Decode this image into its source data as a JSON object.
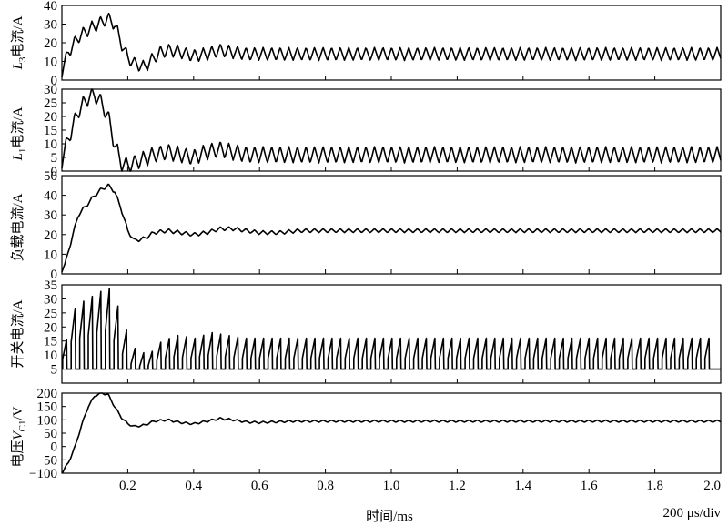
{
  "chart_data": [
    {
      "type": "line",
      "ylabel": "L3电流/A",
      "ylim": [
        0,
        40
      ],
      "yticks": [
        "0",
        "10",
        "20",
        "30",
        "40"
      ],
      "ytick_values": [
        0,
        10,
        20,
        30,
        40
      ],
      "x": [
        0,
        0.02,
        0.05,
        0.08,
        0.1,
        0.12,
        0.14,
        0.16,
        0.18,
        0.2,
        0.22,
        0.25,
        0.28,
        0.3,
        0.33,
        0.36,
        0.4,
        0.44,
        0.48,
        0.52,
        0.56,
        0.6,
        0.7,
        0.8,
        1.0,
        1.2,
        1.4,
        1.6,
        1.8,
        2.0
      ],
      "y": [
        5,
        15,
        23,
        27,
        29,
        31,
        33,
        30,
        20,
        12,
        9,
        7,
        12,
        15,
        16,
        15,
        13,
        14,
        16,
        15,
        14,
        14,
        14,
        14,
        14,
        14,
        14,
        14,
        14,
        14
      ],
      "ripple_amplitude": 3.5
    },
    {
      "type": "line",
      "ylabel": "L1电流/A",
      "ylim": [
        0,
        30
      ],
      "yticks": [
        "0",
        "5",
        "10",
        "15",
        "20",
        "25",
        "30"
      ],
      "ytick_values": [
        0,
        5,
        10,
        15,
        20,
        25,
        30
      ],
      "x": [
        0,
        0.02,
        0.05,
        0.08,
        0.1,
        0.12,
        0.14,
        0.16,
        0.18,
        0.2,
        0.24,
        0.28,
        0.32,
        0.36,
        0.4,
        0.44,
        0.48,
        0.52,
        0.56,
        0.6,
        0.7,
        0.8,
        1.0,
        1.2,
        1.4,
        1.6,
        1.8,
        2.0
      ],
      "y": [
        4,
        12,
        22,
        27,
        28,
        25,
        20,
        10,
        3,
        2,
        4,
        6,
        7,
        6,
        5,
        7,
        8,
        7,
        6,
        6,
        6,
        6,
        6,
        6,
        6,
        6,
        6,
        6
      ],
      "ripple_amplitude": 3
    },
    {
      "type": "line",
      "ylabel": "负载电流/A",
      "ylim": [
        0,
        50
      ],
      "yticks": [
        "0",
        "10",
        "20",
        "30",
        "40",
        "50"
      ],
      "ytick_values": [
        0,
        10,
        20,
        30,
        40,
        50
      ],
      "x": [
        0,
        0.01,
        0.03,
        0.05,
        0.08,
        0.1,
        0.12,
        0.14,
        0.16,
        0.18,
        0.2,
        0.22,
        0.25,
        0.28,
        0.32,
        0.36,
        0.4,
        0.44,
        0.48,
        0.52,
        0.56,
        0.6,
        0.66,
        0.72,
        0.8,
        0.9,
        1.0,
        1.2,
        1.4,
        1.6,
        1.8,
        2.0
      ],
      "y": [
        2,
        5,
        18,
        30,
        36,
        40,
        43,
        45,
        42,
        33,
        22,
        17,
        18,
        21,
        22,
        21,
        20,
        21,
        23,
        23,
        22,
        21,
        21,
        22,
        22,
        22,
        22,
        22,
        22,
        22,
        22,
        22
      ],
      "ripple_amplitude": 1
    },
    {
      "type": "line",
      "ylabel": "开关电流/A",
      "ylim": [
        0,
        35
      ],
      "yticks": [
        "5",
        "10",
        "15",
        "20",
        "25",
        "30",
        "35"
      ],
      "ytick_values": [
        5,
        10,
        15,
        20,
        25,
        30,
        35
      ],
      "x": [
        0,
        0.03,
        0.06,
        0.09,
        0.12,
        0.15,
        0.18,
        0.22,
        0.26,
        0.3,
        0.35,
        0.4,
        0.45,
        0.5,
        0.55,
        0.6,
        0.7,
        0.8,
        1.0,
        1.2,
        1.4,
        1.6,
        1.8,
        2.0
      ],
      "y": [
        10,
        26,
        29,
        31,
        33,
        34,
        22,
        12,
        10,
        15,
        17,
        16,
        18,
        17,
        16,
        16,
        16,
        16,
        16,
        16,
        16,
        16,
        16,
        16
      ],
      "baseline": 5,
      "pulse_period": 0.026
    },
    {
      "type": "line",
      "ylabel": "电压VC1/V",
      "ylim": [
        -100,
        200
      ],
      "yticks": [
        "−100",
        "−50",
        "0",
        "50",
        "100",
        "150",
        "200"
      ],
      "ytick_values": [
        -100,
        -50,
        0,
        50,
        100,
        150,
        200
      ],
      "x": [
        0,
        0.02,
        0.04,
        0.06,
        0.08,
        0.1,
        0.12,
        0.14,
        0.16,
        0.18,
        0.2,
        0.22,
        0.25,
        0.28,
        0.32,
        0.36,
        0.4,
        0.44,
        0.48,
        0.52,
        0.56,
        0.6,
        0.7,
        0.8,
        0.9,
        1.0,
        1.2,
        1.4,
        1.6,
        1.8,
        2.0
      ],
      "y": [
        -100,
        -60,
        0,
        80,
        150,
        190,
        200,
        195,
        150,
        110,
        85,
        75,
        80,
        95,
        100,
        90,
        85,
        95,
        105,
        100,
        92,
        90,
        95,
        95,
        95,
        95,
        95,
        95,
        95,
        95,
        95
      ],
      "ripple_amplitude": 4
    }
  ],
  "x_axis": {
    "range": [
      0,
      2.0
    ],
    "ticks": [
      "0.2",
      "0.4",
      "0.6",
      "0.8",
      "1.0",
      "1.2",
      "1.4",
      "1.6",
      "1.8",
      "2.0"
    ],
    "tick_values": [
      0.2,
      0.4,
      0.6,
      0.8,
      1.0,
      1.2,
      1.4,
      1.6,
      1.8,
      2.0
    ],
    "label": "时间/ms",
    "scale_note": "200 μs/div"
  },
  "labels": {
    "p0_main": "L",
    "p0_sub": "3",
    "p0_rest": "电流/A",
    "p1_main": "L",
    "p1_sub": "1",
    "p1_rest": "电流/A",
    "p2_all": "负载电流/A",
    "p3_all": "开关电流/A",
    "p4_pre": "电压",
    "p4_main": "V",
    "p4_sub": "C1",
    "p4_rest": "/V"
  }
}
